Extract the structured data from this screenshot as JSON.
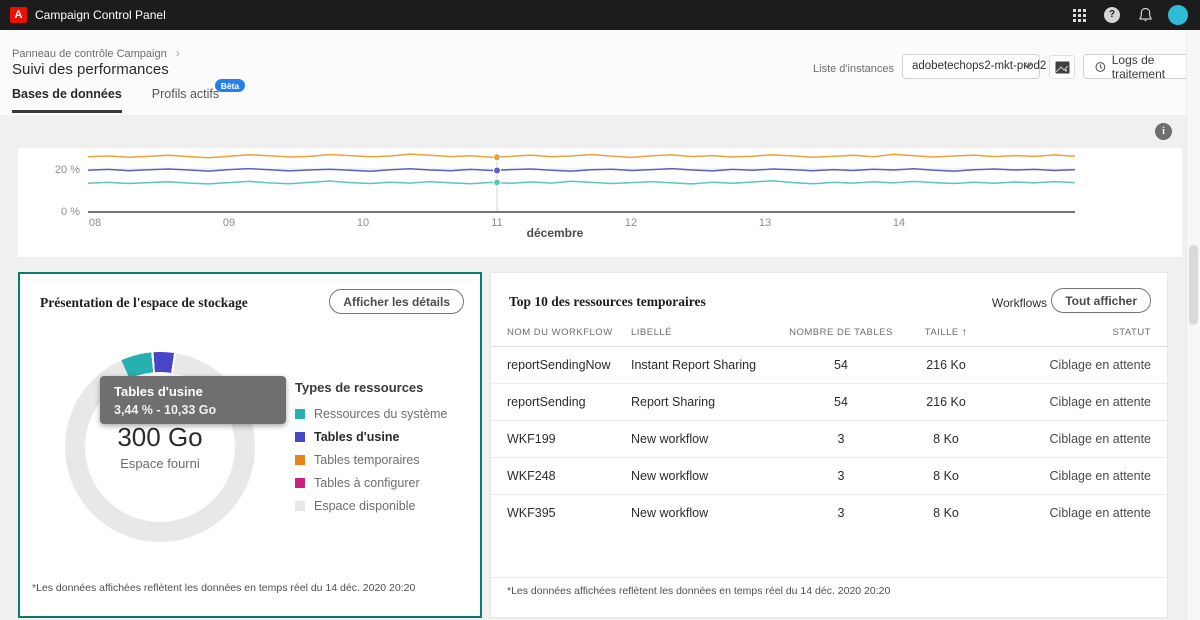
{
  "topbar": {
    "app_title": "Campaign Control Panel",
    "logo_letter": "A"
  },
  "icons": {
    "info_glyph": "i",
    "help_glyph": "?",
    "breadcrumb_chevron": "›",
    "sort_up_arrow": "↑"
  },
  "header": {
    "breadcrumb": "Panneau de contrôle Campaign",
    "page_title": "Suivi des performances",
    "tabs": [
      {
        "label": "Bases de données",
        "active": true
      },
      {
        "label": "Profils actifs",
        "active": false,
        "badge": "Bêta"
      }
    ],
    "instance_label": "Liste d'instances",
    "instance_value": "adobetechops2-mkt-prod2",
    "logs_button": "Logs de traitement"
  },
  "chart_data": {
    "type": "line",
    "title": "",
    "xlabel": "décembre",
    "ylabel": "%",
    "x_ticks": [
      "08",
      "09",
      "10",
      "11",
      "12",
      "13",
      "14"
    ],
    "y_ticks": [
      {
        "label": "20 %",
        "value": 20
      },
      {
        "label": "0 %",
        "value": 0
      }
    ],
    "ylim": [
      0,
      30
    ],
    "gridlines": [
      20
    ],
    "legend_position": "none",
    "hover_marker_day": "11",
    "series": [
      {
        "name": "orange",
        "color": "#e8a33d",
        "values": [
          25.8,
          26.2,
          25.6,
          26.0,
          26.5,
          25.9,
          25.4,
          26.1,
          26.8,
          26.3,
          25.7,
          26.0,
          26.9,
          26.4,
          25.8,
          26.2,
          27.1,
          26.5,
          25.9,
          26.3,
          25.6,
          26.0,
          26.6,
          25.8,
          26.2,
          26.9,
          26.1,
          25.5,
          26.3,
          26.7,
          25.9,
          26.4,
          25.7,
          26.1,
          26.8,
          26.2,
          25.6,
          26.0,
          26.5,
          25.8,
          27.0,
          26.3,
          25.7,
          26.2,
          26.6,
          25.9,
          26.4,
          26.0,
          26.7,
          26.1
        ]
      },
      {
        "name": "indigo",
        "color": "#5b5fc7",
        "values": [
          19.4,
          19.8,
          19.2,
          19.6,
          20.0,
          19.5,
          19.0,
          19.7,
          20.2,
          19.6,
          19.1,
          19.5,
          19.9,
          19.4,
          18.9,
          19.6,
          20.1,
          19.5,
          19.2,
          19.8,
          19.3,
          19.7,
          20.0,
          19.4,
          19.0,
          19.6,
          19.9,
          19.3,
          19.7,
          20.2,
          19.5,
          19.1,
          19.8,
          19.4,
          20.0,
          19.6,
          19.2,
          19.7,
          19.3,
          19.9,
          19.5,
          20.1,
          19.4,
          19.0,
          19.6,
          20.0,
          19.5,
          19.8,
          19.3,
          19.7
        ]
      },
      {
        "name": "teal",
        "color": "#5ec4be",
        "values": [
          13.2,
          13.6,
          13.1,
          13.5,
          13.9,
          13.3,
          12.9,
          13.5,
          14.1,
          13.4,
          13.0,
          13.6,
          14.3,
          13.5,
          13.1,
          13.7,
          13.3,
          14.0,
          13.4,
          13.0,
          13.6,
          13.2,
          13.8,
          13.3,
          14.2,
          13.6,
          13.1,
          13.5,
          14.0,
          13.4,
          12.9,
          13.7,
          13.2,
          13.8,
          14.4,
          13.5,
          13.0,
          13.6,
          13.3,
          13.9,
          13.4,
          14.1,
          13.5,
          13.1,
          13.7,
          13.2,
          13.8,
          13.4,
          14.0,
          13.5
        ]
      }
    ]
  },
  "storage": {
    "title": "Présentation de l'espace de stockage",
    "details_button": "Afficher les détails",
    "donut": {
      "center_value": "300 Go",
      "center_label": "Espace fourni",
      "start_angle_deg": -24,
      "segments": [
        {
          "label": "Ressources du système",
          "color": "#27b0b0",
          "percent": 5.2
        },
        {
          "label": "Tables d'usine",
          "color": "#4646c6",
          "percent": 3.44,
          "highlighted": true
        },
        {
          "label": "Tables temporaires",
          "color": "#e68619",
          "percent": 0
        },
        {
          "label": "Tables à configurer",
          "color": "#ca2282",
          "percent": 0
        },
        {
          "label": "Espace disponible",
          "color": "#e8e8e8",
          "percent": 91.36
        }
      ]
    },
    "tooltip": {
      "title": "Tables d'usine",
      "value": "3,44 % - 10,33 Go"
    },
    "legend_title": "Types de ressources",
    "footnote": "*Les données affichées reflètent les données en temps réel du 14 déc. 2020 20:20"
  },
  "temp_resources": {
    "title": "Top 10 des ressources temporaires",
    "filter_value": "Workflows",
    "show_all_button": "Tout afficher",
    "columns": [
      "NOM DU WORKFLOW",
      "LIBELLÉ",
      "NOMBRE DE TABLES",
      "TAILLE",
      "STATUT"
    ],
    "sort_column": "TAILLE",
    "sort_direction": "ascending",
    "rows": [
      {
        "name": "reportSendingNow",
        "label": "Instant Report Sharing",
        "tables": "54",
        "size": "216 Ko",
        "status": "Ciblage en attente"
      },
      {
        "name": "reportSending",
        "label": "Report Sharing",
        "tables": "54",
        "size": "216 Ko",
        "status": "Ciblage en attente"
      },
      {
        "name": "WKF199",
        "label": "New workflow",
        "tables": "3",
        "size": "8 Ko",
        "status": "Ciblage en attente"
      },
      {
        "name": "WKF248",
        "label": "New workflow",
        "tables": "3",
        "size": "8 Ko",
        "status": "Ciblage en attente"
      },
      {
        "name": "WKF395",
        "label": "New workflow",
        "tables": "3",
        "size": "8 Ko",
        "status": "Ciblage en attente"
      }
    ],
    "footnote": "*Les données affichées reflètent les données en temps réel du 14 déc. 2020 20:20"
  },
  "colors": {
    "topbar": "#1c1c1c",
    "adobe_red": "#eb1000",
    "badge_blue": "#2680eb",
    "selected_card_border": "#0e7b70",
    "avatar": "#2fbcd6"
  }
}
